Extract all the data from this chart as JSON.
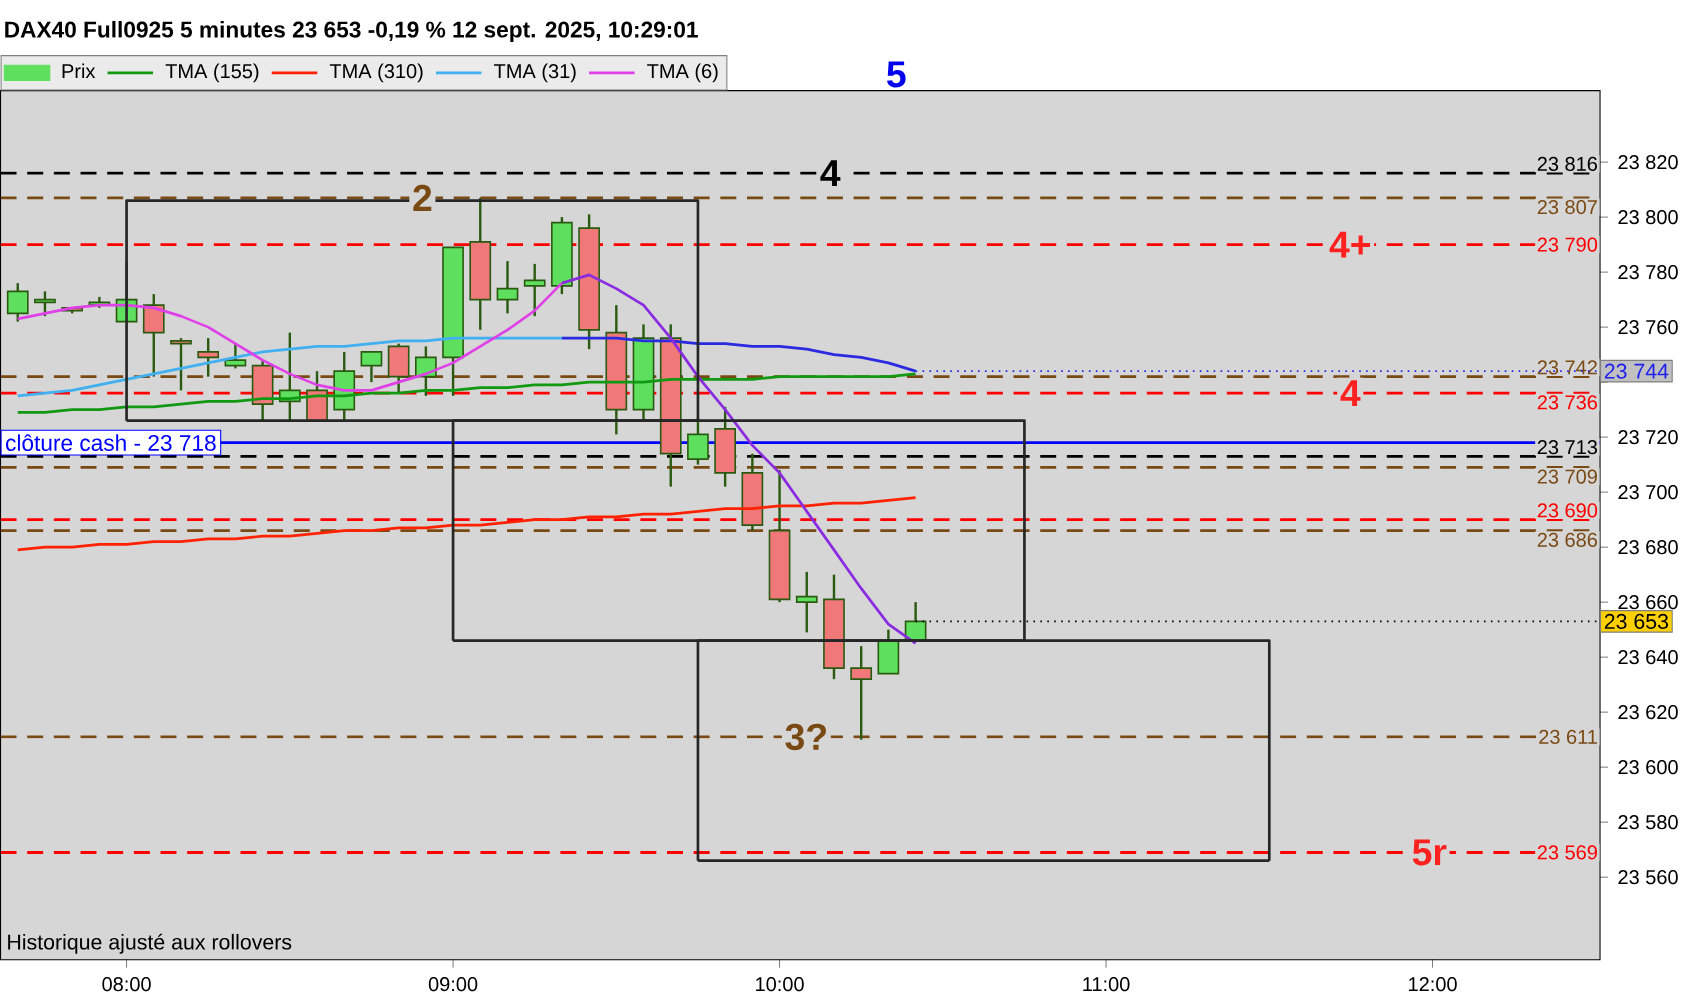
{
  "chart_data": {
    "type": "candlestick",
    "title": "DAX40 Full0925 5 minutes 23 653 -0,19 % 12 sept. 2025, 10:29:01",
    "xlim": [
      7.614,
      12.513
    ],
    "ylim": [
      23530,
      23846
    ],
    "xticks": [
      {
        "value": 8,
        "label": "08:00"
      },
      {
        "value": 9,
        "label": "09:00"
      },
      {
        "value": 10,
        "label": "10:00"
      },
      {
        "value": 11,
        "label": "11:00"
      },
      {
        "value": 12,
        "label": "12:00"
      }
    ],
    "yticks": [
      {
        "value": 23560,
        "label": "23 560"
      },
      {
        "value": 23580,
        "label": "23 580"
      },
      {
        "value": 23600,
        "label": "23 600"
      },
      {
        "value": 23620,
        "label": "23 620"
      },
      {
        "value": 23640,
        "label": "23 640"
      },
      {
        "value": 23660,
        "label": "23 660"
      },
      {
        "value": 23680,
        "label": "23 680"
      },
      {
        "value": 23700,
        "label": "23 700"
      },
      {
        "value": 23720,
        "label": "23 720"
      },
      {
        "value": 23740,
        "label": null
      },
      {
        "value": 23760,
        "label": "23 760"
      },
      {
        "value": 23780,
        "label": "23 780"
      },
      {
        "value": 23800,
        "label": "23 800"
      },
      {
        "value": 23820,
        "label": "23 820"
      }
    ],
    "legend": "top left",
    "series": [
      {
        "name": "Prix",
        "x": [
          7.6667,
          7.75,
          7.8333,
          7.9167,
          8,
          8.0833,
          8.1667,
          8.25,
          8.3333,
          8.4167,
          8.5,
          8.5833,
          8.6667,
          8.75,
          8.8333,
          8.9167,
          9,
          9.0833,
          9.1667,
          9.25,
          9.3333,
          9.4167,
          9.5,
          9.5833,
          9.6667,
          9.75,
          9.8333,
          9.9167,
          10,
          10.0833,
          10.1667,
          10.25,
          10.3333,
          10.4167
        ],
        "ohlc": [
          [
            23765,
            23776,
            23762,
            23773
          ],
          [
            23769,
            23773,
            23764,
            23770
          ],
          [
            23767,
            23767,
            23765,
            23766
          ],
          [
            23768,
            23771,
            23767,
            23769
          ],
          [
            23762,
            23784,
            23762,
            23770
          ],
          [
            23768,
            23772,
            23742,
            23758
          ],
          [
            23755,
            23756,
            23737,
            23754
          ],
          [
            23751,
            23756,
            23742,
            23749
          ],
          [
            23746,
            23754,
            23745,
            23748
          ],
          [
            23746,
            23748,
            23726,
            23732
          ],
          [
            23733,
            23758,
            23726,
            23737
          ],
          [
            23737,
            23744,
            23726,
            23726
          ],
          [
            23730,
            23751,
            23726,
            23744
          ],
          [
            23746,
            23751,
            23740,
            23751
          ],
          [
            23753,
            23754,
            23736,
            23742
          ],
          [
            23742,
            23753,
            23735,
            23749
          ],
          [
            23749,
            23789,
            23735,
            23789
          ],
          [
            23791,
            23807,
            23759,
            23770
          ],
          [
            23770,
            23784,
            23765,
            23774
          ],
          [
            23775,
            23783,
            23764,
            23777
          ],
          [
            23775,
            23800,
            23772,
            23798
          ],
          [
            23796,
            23801,
            23752,
            23759
          ],
          [
            23758,
            23768,
            23721,
            23730
          ],
          [
            23730,
            23761,
            23726,
            23756
          ],
          [
            23756,
            23761,
            23702,
            23714
          ],
          [
            23712,
            23727,
            23710,
            23721
          ],
          [
            23723,
            23731,
            23702,
            23707
          ],
          [
            23707,
            23714,
            23686,
            23688
          ],
          [
            23686,
            23708,
            23660,
            23661
          ],
          [
            23660,
            23671,
            23649,
            23662
          ],
          [
            23661,
            23670,
            23632,
            23636
          ],
          [
            23636,
            23644,
            23610,
            23632
          ],
          [
            23634,
            23650,
            23634,
            23646
          ],
          [
            23646,
            23660,
            23646,
            23653
          ]
        ],
        "colors": [
          "#5ee05e",
          "#5ee05e",
          "#f07878",
          "#5ee05e",
          "#5ee05e",
          "#f07878",
          "#f07878",
          "#f07878",
          "#5ee05e",
          "#f07878",
          "#5ee05e",
          "#f07878",
          "#5ee05e",
          "#5ee05e",
          "#f07878",
          "#5ee05e",
          "#5ee05e",
          "#f07878",
          "#5ee05e",
          "#5ee05e",
          "#5ee05e",
          "#f07878",
          "#f07878",
          "#5ee05e",
          "#f07878",
          "#5ee05e",
          "#f07878",
          "#f07878",
          "#f07878",
          "#5ee05e",
          "#f07878",
          "#f07878",
          "#5ee05e",
          "#5ee05e"
        ]
      },
      {
        "type": "line",
        "name": "TMA (155)",
        "color": "#119911",
        "x": [
          7.6667,
          7.75,
          7.8333,
          7.9167,
          8,
          8.0833,
          8.1667,
          8.25,
          8.3333,
          8.4167,
          8.5,
          8.5833,
          8.6667,
          8.75,
          8.8333,
          8.9167,
          9,
          9.0833,
          9.1667,
          9.25,
          9.3333,
          9.4167,
          9.5,
          9.5833,
          9.6667,
          9.75,
          9.8333,
          9.9167,
          10,
          10.0833,
          10.1667,
          10.25,
          10.3333,
          10.4167
        ],
        "values": [
          23729,
          23729,
          23730,
          23730,
          23731,
          23731,
          23732,
          23733,
          23733,
          23734,
          23734,
          23735,
          23735,
          23736,
          23736,
          23737,
          23737,
          23738,
          23738,
          23739,
          23739,
          23740,
          23740,
          23740,
          23741,
          23741,
          23741,
          23741,
          23742,
          23742,
          23742,
          23742,
          23742,
          23743
        ]
      },
      {
        "type": "line",
        "name": "TMA (310)",
        "color": "#ff2200",
        "x": [
          7.6667,
          7.75,
          7.8333,
          7.9167,
          8,
          8.0833,
          8.1667,
          8.25,
          8.3333,
          8.4167,
          8.5,
          8.5833,
          8.6667,
          8.75,
          8.8333,
          8.9167,
          9,
          9.0833,
          9.1667,
          9.25,
          9.3333,
          9.4167,
          9.5,
          9.5833,
          9.6667,
          9.75,
          9.8333,
          9.9167,
          10,
          10.0833,
          10.1667,
          10.25,
          10.3333,
          10.4167
        ],
        "values": [
          23679,
          23680,
          23680,
          23681,
          23681,
          23682,
          23682,
          23683,
          23683,
          23684,
          23684,
          23685,
          23686,
          23686,
          23687,
          23687,
          23688,
          23688,
          23689,
          23690,
          23690,
          23691,
          23691,
          23692,
          23692,
          23693,
          23694,
          23694,
          23695,
          23695,
          23696,
          23696,
          23697,
          23698
        ]
      },
      {
        "type": "line",
        "name": "TMA (31)",
        "color": "#40b0f0",
        "x": [
          7.6667,
          7.75,
          7.8333,
          7.9167,
          8,
          8.0833,
          8.1667,
          8.25,
          8.3333,
          8.4167,
          8.5,
          8.5833,
          8.6667,
          8.75,
          8.8333,
          8.9167,
          9,
          9.0833,
          9.1667,
          9.25,
          9.3333
        ],
        "values": [
          23735,
          23736,
          23737,
          23739,
          23741,
          23743,
          23745,
          23747,
          23749,
          23751,
          23752,
          23753,
          23753,
          23754,
          23755,
          23755,
          23756,
          23756,
          23756,
          23756,
          23756
        ]
      },
      {
        "type": "line",
        "name": "TMA (6)",
        "color": "#e040e8",
        "x": [
          7.6667,
          7.75,
          7.8333,
          7.9167,
          8,
          8.0833,
          8.1667,
          8.25,
          8.3333,
          8.4167,
          8.5,
          8.5833,
          8.6667,
          8.75,
          8.8333,
          8.9167,
          9,
          9.0833,
          9.1667,
          9.25,
          9.3333
        ],
        "values": [
          23763,
          23765,
          23767,
          23768,
          23768,
          23767,
          23764,
          23760,
          23754,
          23748,
          23743,
          23739,
          23737,
          23737,
          23740,
          23743,
          23747,
          23753,
          23759,
          23766,
          23776
        ]
      },
      {
        "type": "line",
        "color": "#2a2ae0",
        "x": [
          9.3333,
          9.4167,
          9.5,
          9.5833,
          9.6667,
          9.75,
          9.8333,
          9.9167,
          10,
          10.0833,
          10.1667,
          10.25,
          10.3333,
          10.4167
        ],
        "values": [
          23756,
          23756,
          23756,
          23755,
          23755,
          23754,
          23754,
          23753,
          23753,
          23752,
          23750,
          23749,
          23747,
          23744
        ]
      },
      {
        "type": "line",
        "color": "#8a2be2",
        "x": [
          9.3333,
          9.4167,
          9.5,
          9.5833,
          9.6667,
          9.75,
          9.8333,
          9.9167,
          10,
          10.0833,
          10.1667,
          10.25,
          10.3333,
          10.4167
        ],
        "values": [
          23776,
          23779,
          23774,
          23768,
          23756,
          23742,
          23730,
          23717,
          23707,
          23693,
          23679,
          23665,
          23652,
          23645
        ]
      },
      {
        "type": "line",
        "color": "#262626",
        "x": [
          8,
          8,
          9.75,
          9.75
        ],
        "values": [
          23726,
          23806,
          23806,
          23726
        ]
      },
      {
        "type": "line",
        "color": "#262626",
        "x": [
          9,
          9,
          10.75,
          10.75
        ],
        "values": [
          23646,
          23726,
          23726,
          23646
        ]
      },
      {
        "type": "line",
        "color": "#262626",
        "x": [
          9.75,
          9.75,
          11.5,
          11.5
        ],
        "values": [
          23566,
          23646,
          23646,
          23566
        ]
      },
      {
        "type": "line",
        "color": "#262626",
        "x": [
          8,
          9.75
        ],
        "values": [
          23726,
          23726
        ]
      },
      {
        "type": "line",
        "color": "#262626",
        "x": [
          9,
          10.75
        ],
        "values": [
          23646,
          23646
        ]
      },
      {
        "type": "line",
        "color": "#262626",
        "x": [
          9.75,
          11.5
        ],
        "values": [
          23566,
          23566
        ]
      }
    ],
    "ref_lines": [
      {
        "axis": "y",
        "value": 23816,
        "label": "23 816",
        "color": "#000000",
        "line_style": "dashed"
      },
      {
        "axis": "y",
        "value": 23807,
        "label": "23 807",
        "color": "#7a4a14",
        "line_style": "dashed"
      },
      {
        "axis": "y",
        "value": 23790,
        "label": "23 790",
        "color": "#ff0000",
        "line_style": "dashed"
      },
      {
        "axis": "y",
        "value": 23742,
        "label": "23 742",
        "color": "#7a4a14",
        "line_style": "dashed"
      },
      {
        "axis": "y",
        "value": 23736,
        "label": "23 736",
        "color": "#ff0000",
        "line_style": "dashed"
      },
      {
        "axis": "y",
        "value": 23718,
        "label": "clôture cash -  23 718",
        "color": "#0000ff",
        "line_style": "solid"
      },
      {
        "axis": "y",
        "value": 23713,
        "label": "23 713",
        "color": "#000000",
        "line_style": "dashed"
      },
      {
        "axis": "y",
        "value": 23709,
        "label": "23 709",
        "color": "#7a4a14",
        "line_style": "dashed"
      },
      {
        "axis": "y",
        "value": 23690,
        "label": "23 690",
        "color": "#ff0000",
        "line_style": "dashed"
      },
      {
        "axis": "y",
        "value": 23686,
        "label": "23 686",
        "color": "#7a4a14",
        "line_style": "dashed"
      },
      {
        "axis": "y",
        "value": 23611,
        "label": "23 611",
        "color": "#7a4a14",
        "line_style": "dashed"
      },
      {
        "axis": "y",
        "value": 23569,
        "label": "23 569",
        "color": "#ff0000",
        "line_style": "dashed"
      }
    ],
    "annotations": [
      "5",
      {
        "text": "4",
        "x": 10.155,
        "y": 23816
      },
      {
        "text": "2",
        "x": 8.906,
        "y": 23807
      },
      {
        "text": "4+",
        "x": 11.748,
        "y": 23790
      },
      {
        "text": "4",
        "x": 11.748,
        "y": 23736
      },
      {
        "text": "3?",
        "x": 10.082,
        "y": 23611
      },
      {
        "text": "5r",
        "x": 11.99,
        "y": 23569
      },
      {
        "text": "23 744",
        "x": 10.4167,
        "y": 23744
      },
      {
        "text": "23 653",
        "x": 10.4167,
        "y": 23653
      },
      "Historique ajusté aux rollovers"
    ]
  }
}
